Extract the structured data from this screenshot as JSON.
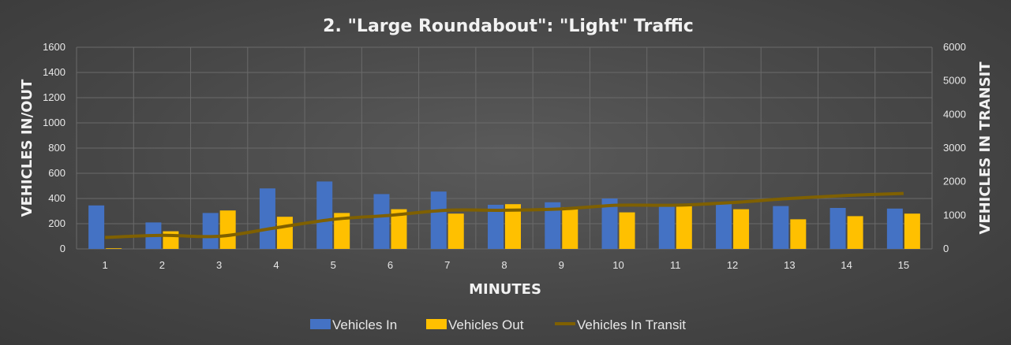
{
  "chart_data": {
    "type": "bar",
    "title": "2. \"Large Roundabout\": \"Light\" Traffic",
    "xlabel": "MINUTES",
    "ylabel": "VEHICLES IN/OUT",
    "y2label": "VEHICLES IN TRANSIT",
    "categories": [
      "1",
      "2",
      "3",
      "4",
      "5",
      "6",
      "7",
      "8",
      "9",
      "10",
      "11",
      "12",
      "13",
      "14",
      "15"
    ],
    "ylim": [
      0,
      1600
    ],
    "y2lim": [
      0,
      6000
    ],
    "yticks": [
      "0",
      "200",
      "400",
      "600",
      "800",
      "1000",
      "1200",
      "1400",
      "1600"
    ],
    "y2ticks": [
      "0",
      "1000",
      "2000",
      "3000",
      "4000",
      "5000",
      "6000"
    ],
    "grid": true,
    "legend_position": "bottom",
    "series": [
      {
        "name": "Vehicles In",
        "type": "bar",
        "axis": "left",
        "color": "#4472c4",
        "values": [
          345,
          210,
          285,
          480,
          535,
          435,
          455,
          350,
          370,
          400,
          355,
          360,
          340,
          325,
          320
        ]
      },
      {
        "name": "Vehicles Out",
        "type": "bar",
        "axis": "left",
        "color": "#ffc000",
        "values": [
          5,
          140,
          305,
          255,
          285,
          315,
          280,
          355,
          330,
          290,
          345,
          315,
          235,
          260,
          280
        ]
      },
      {
        "name": "Vehicles In Transit",
        "type": "line",
        "axis": "right",
        "color": "#7f6000",
        "values": [
          340,
          405,
          375,
          630,
          880,
          1000,
          1150,
          1150,
          1190,
          1300,
          1300,
          1380,
          1500,
          1590,
          1650
        ]
      }
    ]
  }
}
